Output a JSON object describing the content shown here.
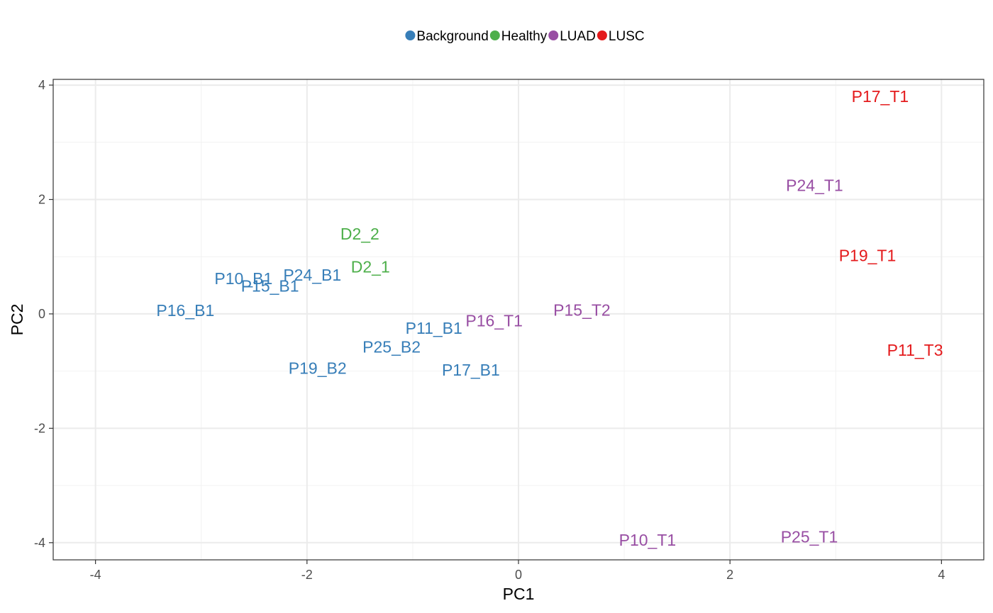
{
  "chart_data": {
    "type": "scatter",
    "title": "",
    "xlabel": "PC1",
    "ylabel": "PC2",
    "xlim": [
      -4.4,
      4.4
    ],
    "ylim": [
      -4.3,
      4.1
    ],
    "xticks": [
      -4,
      -2,
      0,
      2,
      4
    ],
    "yticks": [
      -4,
      -2,
      0,
      2,
      4
    ],
    "xtick_labels": [
      "-4",
      "-2",
      "0",
      "2",
      "4"
    ],
    "ytick_labels": [
      "-4",
      "-2",
      "0",
      "2",
      "4"
    ],
    "grid": true,
    "legend_position": "top",
    "series": [
      {
        "name": "Background",
        "color": "#377EB8",
        "points": [
          {
            "label": "P10_B1",
            "x": -2.6,
            "y": 0.62
          },
          {
            "label": "P15_B1",
            "x": -2.35,
            "y": 0.49
          },
          {
            "label": "P24_B1",
            "x": -1.95,
            "y": 0.68
          },
          {
            "label": "P16_B1",
            "x": -3.15,
            "y": 0.06
          },
          {
            "label": "P11_B1",
            "x": -0.8,
            "y": -0.25
          },
          {
            "label": "P25_B2",
            "x": -1.2,
            "y": -0.58
          },
          {
            "label": "P19_B2",
            "x": -1.9,
            "y": -0.95
          },
          {
            "label": "P17_B1",
            "x": -0.45,
            "y": -0.98
          }
        ]
      },
      {
        "name": "Healthy",
        "color": "#4DAF4A",
        "points": [
          {
            "label": "D2_2",
            "x": -1.5,
            "y": 1.4
          },
          {
            "label": "D2_1",
            "x": -1.4,
            "y": 0.82
          }
        ]
      },
      {
        "name": "LUAD",
        "color": "#984EA3",
        "points": [
          {
            "label": "P16_T1",
            "x": -0.23,
            "y": -0.12
          },
          {
            "label": "P15_T2",
            "x": 0.6,
            "y": 0.07
          },
          {
            "label": "P24_T1",
            "x": 2.8,
            "y": 2.25
          },
          {
            "label": "P10_T1",
            "x": 1.22,
            "y": -3.95
          },
          {
            "label": "P25_T1",
            "x": 2.75,
            "y": -3.9
          }
        ]
      },
      {
        "name": "LUSC",
        "color": "#E41A1C",
        "points": [
          {
            "label": "P17_T1",
            "x": 3.42,
            "y": 3.8
          },
          {
            "label": "P19_T1",
            "x": 3.3,
            "y": 1.02
          },
          {
            "label": "P11_T3",
            "x": 3.75,
            "y": -0.63
          }
        ]
      }
    ]
  }
}
